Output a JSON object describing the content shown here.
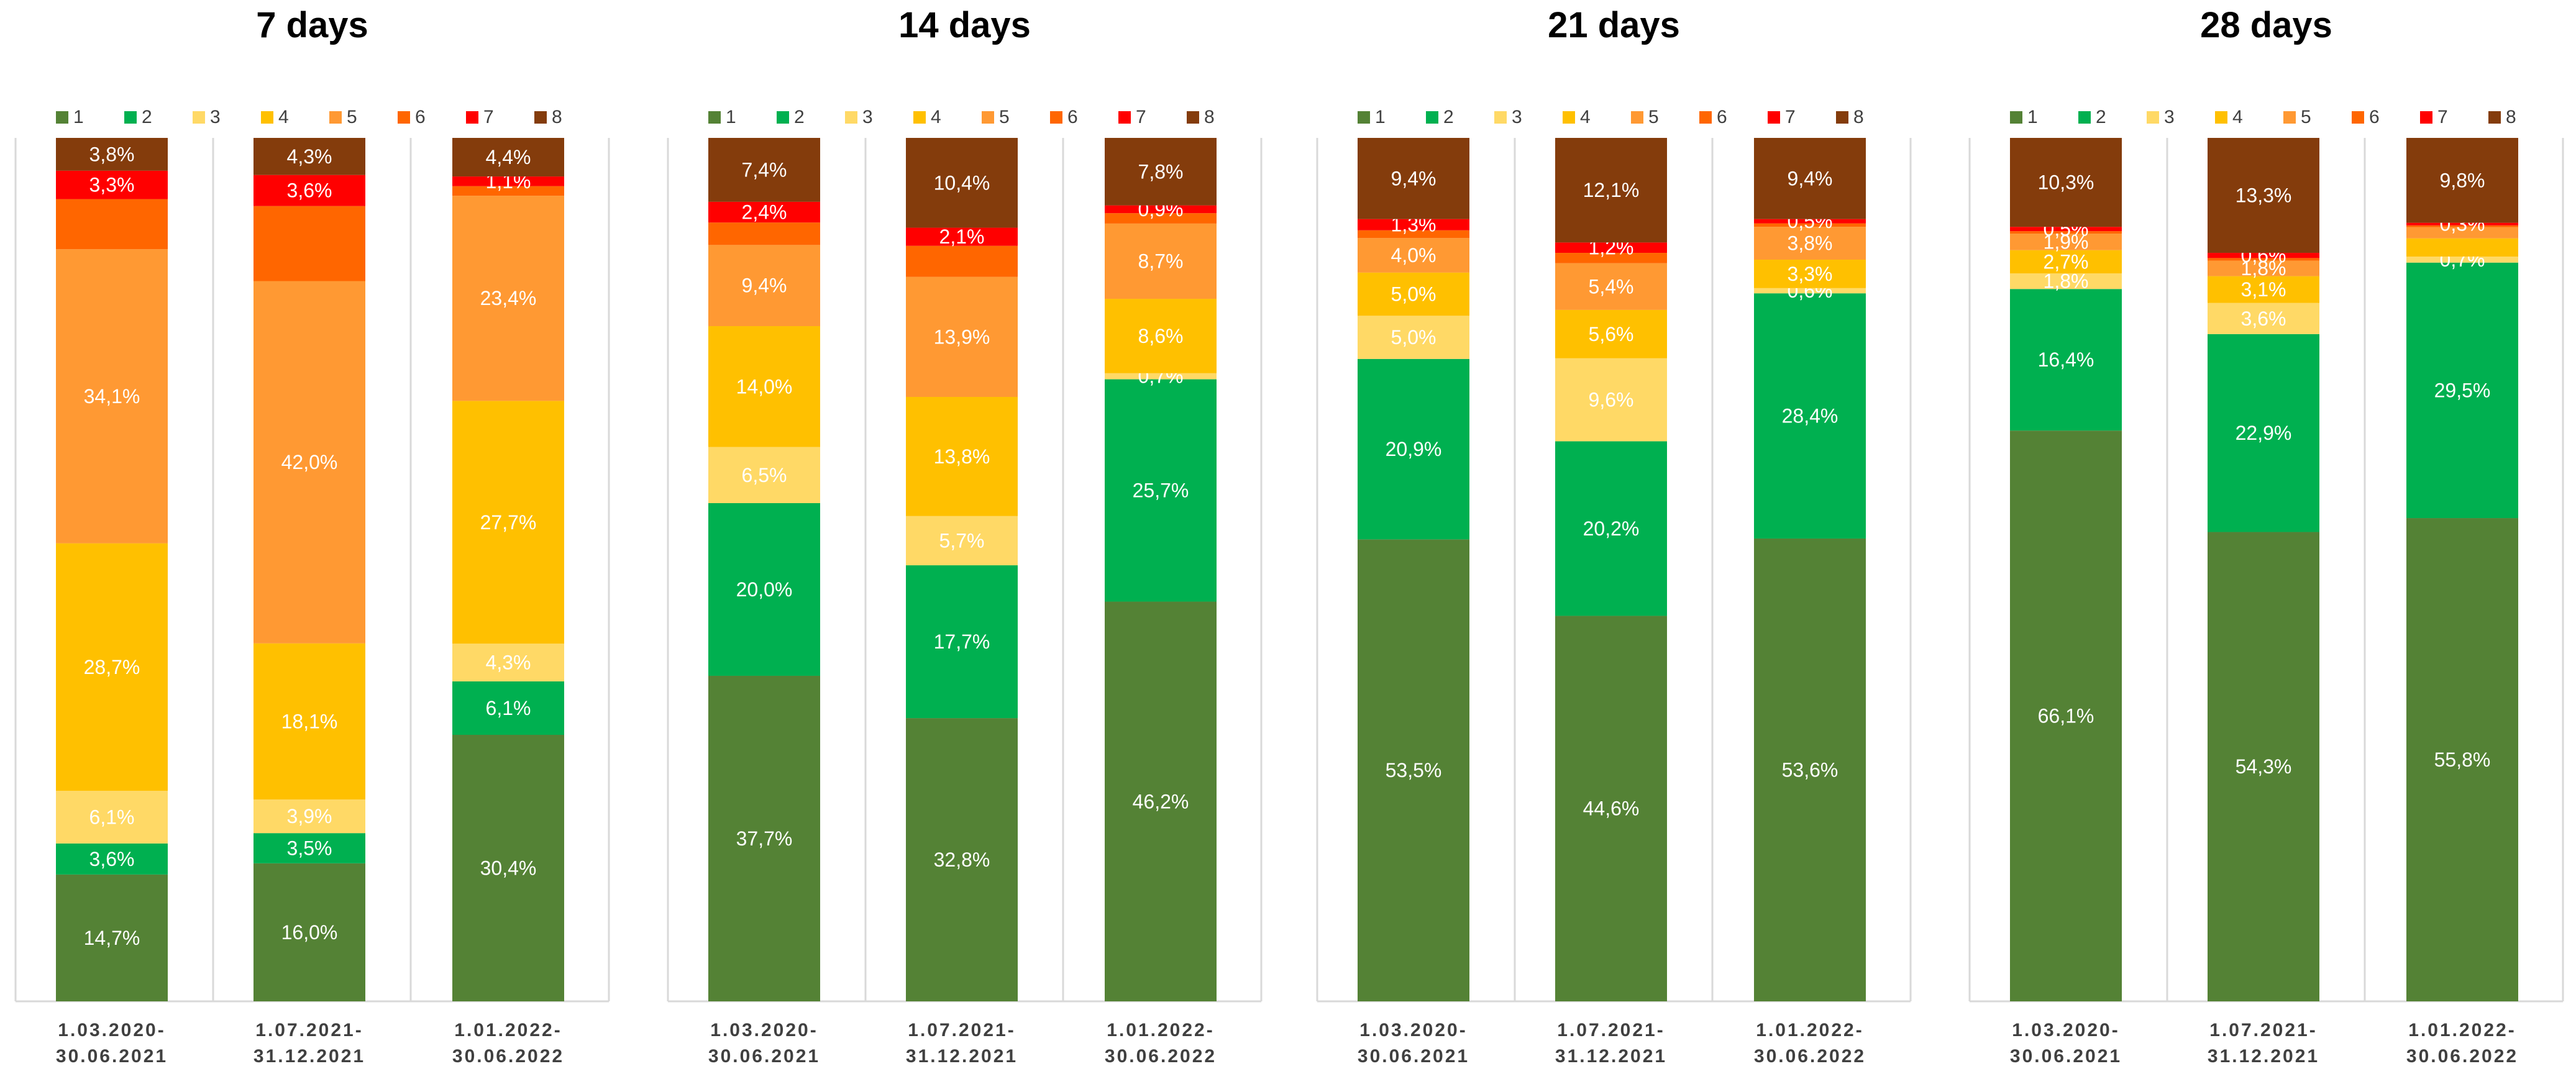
{
  "legend": {
    "labels": [
      "1",
      "2",
      "3",
      "4",
      "5",
      "6",
      "7",
      "8"
    ],
    "colors": [
      "#548235",
      "#00B050",
      "#FFD966",
      "#FFC000",
      "#FF9933",
      "#FF6600",
      "#FF0000",
      "#843C0C"
    ]
  },
  "chart_data": [
    {
      "type": "bar",
      "stacked": "100%",
      "title": "7 days",
      "categories": [
        [
          "1.03.2020-",
          "30.06.2021"
        ],
        [
          "1.07.2021-",
          "31.12.2021"
        ],
        [
          "1.01.2022-",
          "30.06.2022"
        ]
      ],
      "series": [
        {
          "name": "1",
          "values": [
            14.7,
            16.0,
            30.4
          ],
          "labels": [
            "14,7%",
            "16,0%",
            "30,4%"
          ]
        },
        {
          "name": "2",
          "values": [
            3.6,
            3.5,
            6.1
          ],
          "labels": [
            "3,6%",
            "3,5%",
            "6,1%"
          ]
        },
        {
          "name": "3",
          "values": [
            6.1,
            3.9,
            4.3
          ],
          "labels": [
            "6,1%",
            "3,9%",
            "4,3%"
          ]
        },
        {
          "name": "4",
          "values": [
            28.7,
            18.1,
            27.7
          ],
          "labels": [
            "28,7%",
            "18,1%",
            "27,7%"
          ]
        },
        {
          "name": "5",
          "values": [
            34.1,
            42.0,
            23.4
          ],
          "labels": [
            "34,1%",
            "42,0%",
            "23,4%"
          ]
        },
        {
          "name": "6",
          "values": [
            5.8,
            8.7,
            1.1
          ],
          "labels": [
            null,
            null,
            null
          ]
        },
        {
          "name": "7",
          "values": [
            3.3,
            3.6,
            1.1
          ],
          "labels": [
            "3,3%",
            "3,6%",
            "1,1%"
          ]
        },
        {
          "name": "8",
          "values": [
            3.8,
            4.3,
            4.4
          ],
          "labels": [
            "3,8%",
            "4,3%",
            "4,4%"
          ]
        }
      ]
    },
    {
      "type": "bar",
      "stacked": "100%",
      "title": "14 days",
      "categories": [
        [
          "1.03.2020-",
          "30.06.2021"
        ],
        [
          "1.07.2021-",
          "31.12.2021"
        ],
        [
          "1.01.2022-",
          "30.06.2022"
        ]
      ],
      "series": [
        {
          "name": "1",
          "values": [
            37.7,
            32.8,
            46.2
          ],
          "labels": [
            "37,7%",
            "32,8%",
            "46,2%"
          ]
        },
        {
          "name": "2",
          "values": [
            20.0,
            17.7,
            25.7
          ],
          "labels": [
            "20,0%",
            "17,7%",
            "25,7%"
          ]
        },
        {
          "name": "3",
          "values": [
            6.5,
            5.7,
            0.7
          ],
          "labels": [
            "6,5%",
            "5,7%",
            "0,7%"
          ]
        },
        {
          "name": "4",
          "values": [
            14.0,
            13.8,
            8.6
          ],
          "labels": [
            "14,0%",
            "13,8%",
            "8,6%"
          ]
        },
        {
          "name": "5",
          "values": [
            9.4,
            13.9,
            8.7
          ],
          "labels": [
            "9,4%",
            "13,9%",
            "8,7%"
          ]
        },
        {
          "name": "6",
          "values": [
            2.6,
            3.6,
            1.2
          ],
          "labels": [
            null,
            null,
            null
          ]
        },
        {
          "name": "7",
          "values": [
            2.4,
            2.1,
            0.9
          ],
          "labels": [
            "2,4%",
            "2,1%",
            "0,9%"
          ]
        },
        {
          "name": "8",
          "values": [
            7.4,
            10.4,
            7.8
          ],
          "labels": [
            "7,4%",
            "10,4%",
            "7,8%"
          ]
        }
      ]
    },
    {
      "type": "bar",
      "stacked": "100%",
      "title": "21 days",
      "categories": [
        [
          "1.03.2020-",
          "30.06.2021"
        ],
        [
          "1.07.2021-",
          "31.12.2021"
        ],
        [
          "1.01.2022-",
          "30.06.2022"
        ]
      ],
      "series": [
        {
          "name": "1",
          "values": [
            53.5,
            44.6,
            53.6
          ],
          "labels": [
            "53,5%",
            "44,6%",
            "53,6%"
          ]
        },
        {
          "name": "2",
          "values": [
            20.9,
            20.2,
            28.4
          ],
          "labels": [
            "20,9%",
            "20,2%",
            "28,4%"
          ]
        },
        {
          "name": "3",
          "values": [
            5.0,
            9.6,
            0.6
          ],
          "labels": [
            "5,0%",
            "9,6%",
            "0,6%"
          ]
        },
        {
          "name": "4",
          "values": [
            5.0,
            5.6,
            3.3
          ],
          "labels": [
            "5,0%",
            "5,6%",
            "3,3%"
          ]
        },
        {
          "name": "5",
          "values": [
            4.0,
            5.4,
            3.8
          ],
          "labels": [
            "4,0%",
            "5,4%",
            "3,8%"
          ]
        },
        {
          "name": "6",
          "values": [
            0.9,
            1.2,
            0.4
          ],
          "labels": [
            null,
            null,
            null
          ]
        },
        {
          "name": "7",
          "values": [
            1.3,
            1.2,
            0.5
          ],
          "labels": [
            "1,3%",
            "1,2%",
            "0,5%"
          ]
        },
        {
          "name": "8",
          "values": [
            9.4,
            12.1,
            9.4
          ],
          "labels": [
            "9,4%",
            "12,1%",
            "9,4%"
          ]
        }
      ]
    },
    {
      "type": "bar",
      "stacked": "100%",
      "title": "28 days",
      "categories": [
        [
          "1.03.2020-",
          "30.06.2021"
        ],
        [
          "1.07.2021-",
          "31.12.2021"
        ],
        [
          "1.01.2022-",
          "30.06.2022"
        ]
      ],
      "series": [
        {
          "name": "1",
          "values": [
            66.1,
            54.3,
            55.8
          ],
          "labels": [
            "66,1%",
            "54,3%",
            "55,8%"
          ]
        },
        {
          "name": "2",
          "values": [
            16.4,
            22.9,
            29.5
          ],
          "labels": [
            "16,4%",
            "22,9%",
            "29,5%"
          ]
        },
        {
          "name": "3",
          "values": [
            1.8,
            3.6,
            0.7
          ],
          "labels": [
            "1,8%",
            "3,6%",
            "0,7%"
          ]
        },
        {
          "name": "4",
          "values": [
            2.7,
            3.1,
            2.1
          ],
          "labels": [
            "2,7%",
            "3,1%",
            null
          ]
        },
        {
          "name": "5",
          "values": [
            1.9,
            1.8,
            1.3
          ],
          "labels": [
            "1,9%",
            "1,8%",
            null
          ]
        },
        {
          "name": "6",
          "values": [
            0.3,
            0.3,
            0.2
          ],
          "labels": [
            null,
            null,
            null
          ]
        },
        {
          "name": "7",
          "values": [
            0.5,
            0.6,
            0.3
          ],
          "labels": [
            "0,5%",
            "0,6%",
            "0,3%"
          ]
        },
        {
          "name": "8",
          "values": [
            10.3,
            13.3,
            9.8
          ],
          "labels": [
            "10,3%",
            "13,3%",
            "9,8%"
          ]
        }
      ]
    }
  ]
}
